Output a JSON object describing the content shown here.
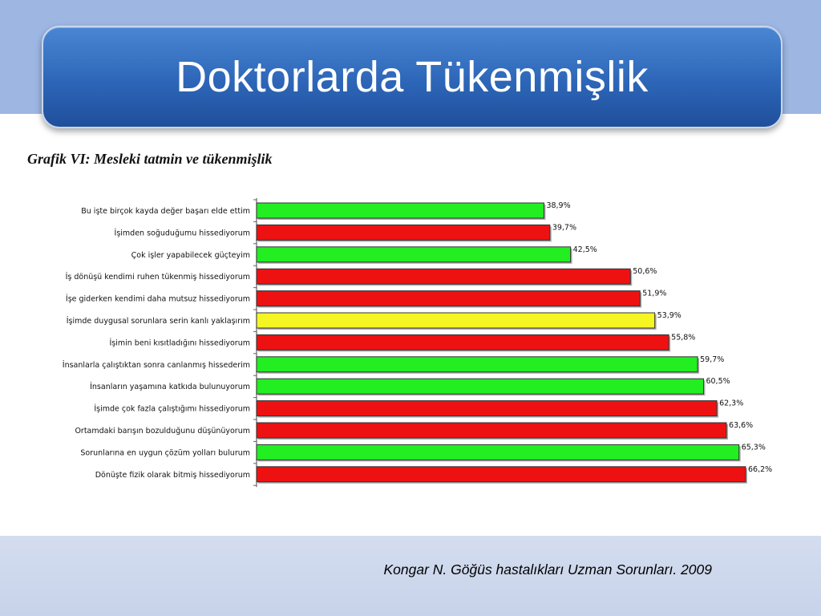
{
  "slide": {
    "title": "Doktorlarda Tükenmişlik",
    "citation": "Kongar N. Göğüs hastalıkları Uzman Sorunları. 2009"
  },
  "colors": {
    "green": "#22ee22",
    "red": "#ee1111",
    "yellow": "#f5f524",
    "banner": "#2d66b8",
    "background": "#9db6e2"
  },
  "chart_data": {
    "type": "bar",
    "orientation": "horizontal",
    "title": "Grafik  VI: Mesleki tatmin ve tükenmişlik",
    "categories": [
      "Bu işte birçok kayda değer başarı elde ettim",
      "İşimden soğuduğumu hissediyorum",
      "Çok işler yapabilecek güçteyim",
      "İş dönüşü kendimi ruhen tükenmiş hissediyorum",
      "İşe giderken kendimi daha mutsuz hissediyorum",
      "İşimde duygusal sorunlara serin kanlı yaklaşırım",
      "İşimin beni kısıtladığını hissediyorum",
      "İnsanlarla çalıştıktan sonra canlanmış hissederim",
      "İnsanların yaşamına katkıda bulunuyorum",
      "İşimde çok fazla çalıştığımı hissediyorum",
      "Ortamdaki barışın bozulduğunu düşünüyorum",
      "Sorunlarına en uygun çözüm yolları bulurum",
      "Dönüşte fizik olarak bitmiş hissediyorum"
    ],
    "values": [
      38.9,
      39.7,
      42.5,
      50.6,
      51.9,
      53.9,
      55.8,
      59.7,
      60.5,
      62.3,
      63.6,
      65.3,
      66.2
    ],
    "value_labels": [
      "38,9%",
      "39,7%",
      "42,5%",
      "50,6%",
      "51,9%",
      "53,9%",
      "55,8%",
      "59,7%",
      "60,5%",
      "62,3%",
      "63,6%",
      "65,3%",
      "66,2%"
    ],
    "bar_colors": [
      "green",
      "red",
      "green",
      "red",
      "red",
      "yellow",
      "red",
      "green",
      "green",
      "red",
      "red",
      "green",
      "red"
    ],
    "xlim": [
      0,
      66.2
    ],
    "grid": false,
    "legend": "none"
  }
}
